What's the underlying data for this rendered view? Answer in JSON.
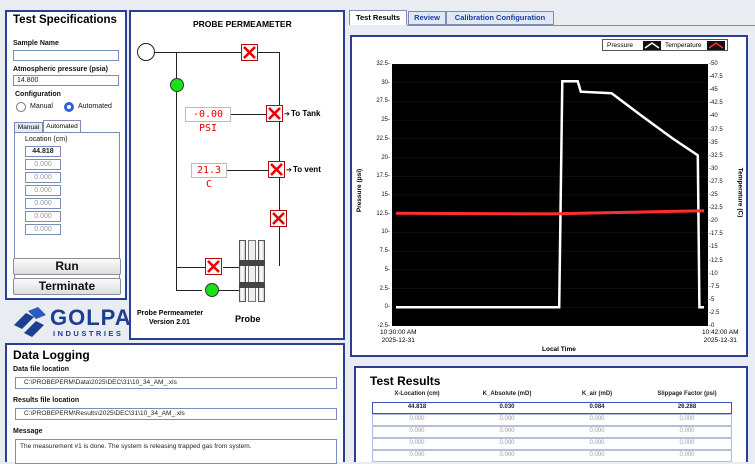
{
  "test_specs": {
    "title": "Test Specifications",
    "sample_name_label": "Sample Name",
    "sample_name_value": "",
    "atm_label": "Atmospheric pressure (psia)",
    "atm_value": "14.800",
    "config_label": "Configuration",
    "manual_label": "Manual",
    "automated_label": "Automated",
    "tabs": [
      "Manual",
      "Automated"
    ],
    "location_label": "Location (cm)",
    "locations": [
      "44.818",
      "0.000",
      "0.000",
      "0.000",
      "0.000",
      "0.000",
      "0.000"
    ],
    "run_label": "Run",
    "terminate_label": "Terminate"
  },
  "logo": {
    "text1": "GOLPA",
    "text2": "INDUSTRIES"
  },
  "diagram": {
    "title": "PROBE PERMEAMETER",
    "pressure_display": "-0.00 PSI",
    "temp_display": "21.3  C",
    "to_tank": "To Tank",
    "to_vent": "To vent",
    "version_line1": "Probe Permeameter",
    "version_line2": "Version 2.01",
    "probe_label": "Probe"
  },
  "data_logging": {
    "title": "Data Logging",
    "data_file_label": "Data file location",
    "data_file_value": "C:\\PROBEPERM\\Data\\2025\\DEC\\31\\10_34_AM_.xls",
    "results_file_label": "Results file location",
    "results_file_value": "C:\\PROBEPERM\\Results\\2025\\DEC\\31\\10_34_AM_.xls",
    "message_label": "Message",
    "message_value": "The measurement #1 is done. The system is releasing trapped gas from system."
  },
  "right_tabs": [
    "Test Results",
    "Review",
    "Calibration Configuration"
  ],
  "chart_data": {
    "type": "line",
    "legend": [
      "Pressure",
      "Temperature"
    ],
    "legend_placement": "top-right",
    "ylabel": "Pressure (psi)",
    "y2label": "Temperature (C)",
    "xlabel": "Local Time",
    "x_ticks": [
      [
        "10:30:00 AM",
        "2025-12-31"
      ],
      [
        "10:42:00 AM",
        "2025-12-31"
      ]
    ],
    "ylim": [
      -2.5,
      32.5
    ],
    "y2lim": [
      0,
      50
    ],
    "yticks": [
      "32.5-",
      "30-",
      "27.5-",
      "25-",
      "22.5-",
      "20-",
      "17.5-",
      "15-",
      "12.5-",
      "10-",
      "7.5-",
      "5-",
      "2.5-",
      "0-",
      "-2.5-"
    ],
    "y2ticks": [
      "-50",
      "-47.5",
      "-45",
      "-42.5",
      "-40",
      "-37.5",
      "-35",
      "-32.5",
      "-30",
      "-27.5",
      "-25",
      "-22.5",
      "-20",
      "-17.5",
      "-15",
      "-12.5",
      "-10",
      "-7.5",
      "-5",
      "-2.5",
      "-0"
    ],
    "series": [
      {
        "name": "Pressure",
        "color": "#ffffff",
        "axis": "left",
        "points": [
          [
            0,
            0
          ],
          [
            0.53,
            0
          ],
          [
            0.54,
            30.2
          ],
          [
            0.59,
            30.2
          ],
          [
            0.6,
            28.8
          ],
          [
            0.7,
            28.6
          ],
          [
            0.8,
            25.5
          ],
          [
            0.9,
            22.5
          ],
          [
            0.98,
            20.3
          ],
          [
            0.985,
            0
          ],
          [
            1,
            0
          ]
        ]
      },
      {
        "name": "Temperature",
        "color": "#ff2e2e",
        "axis": "right",
        "points": [
          [
            0,
            21.5
          ],
          [
            0.5,
            21.4
          ],
          [
            1,
            22.0
          ]
        ]
      }
    ]
  },
  "results": {
    "title": "Test Results",
    "headers": [
      "X-Location (cm)",
      "K_Absolute (mD)",
      "K_air (mD)",
      "Slippage Factor (psi)"
    ],
    "rows": [
      [
        "44.818",
        "0.030",
        "0.084",
        "26.288"
      ],
      [
        "0.000",
        "0.000",
        "0.000",
        "0.000"
      ],
      [
        "0.000",
        "0.000",
        "0.000",
        "0.000"
      ],
      [
        "0.000",
        "0.000",
        "0.000",
        "0.000"
      ],
      [
        "0.000",
        "0.000",
        "0.000",
        "0.000"
      ]
    ]
  }
}
